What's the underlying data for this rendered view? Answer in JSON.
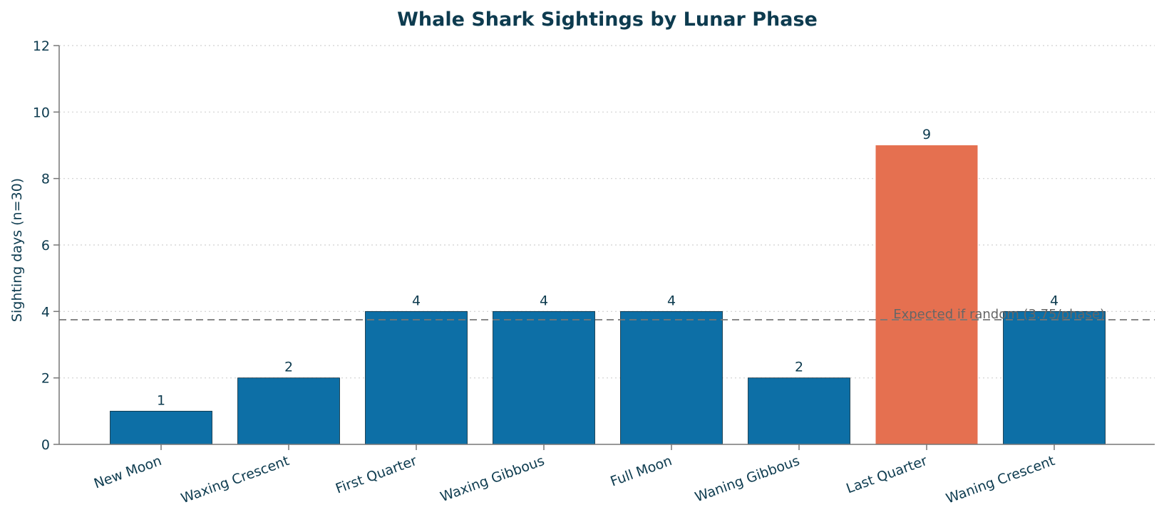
{
  "chart_data": {
    "type": "bar",
    "title": "Whale Shark Sightings by Lunar Phase",
    "xlabel": "",
    "ylabel": "Sighting days (n=30)",
    "categories": [
      "New Moon",
      "Waxing Crescent",
      "First Quarter",
      "Waxing Gibbous",
      "Full Moon",
      "Waning Gibbous",
      "Last Quarter",
      "Waning Crescent"
    ],
    "values": [
      1,
      2,
      4,
      4,
      4,
      2,
      9,
      4
    ],
    "highlight_index": 6,
    "ylim": [
      0,
      12
    ],
    "yticks": [
      0,
      2,
      4,
      6,
      8,
      10,
      12
    ],
    "grid": "horizontal dotted",
    "reference_line": {
      "value": 3.75,
      "label": "Expected if random (3.75/phase)"
    },
    "colors": {
      "bar": "#0d6fa6",
      "highlight": "#e57050",
      "text": "#0d3b4f",
      "reference": "#777777",
      "grid": "#d0d0d0",
      "axis": "#777777"
    }
  }
}
